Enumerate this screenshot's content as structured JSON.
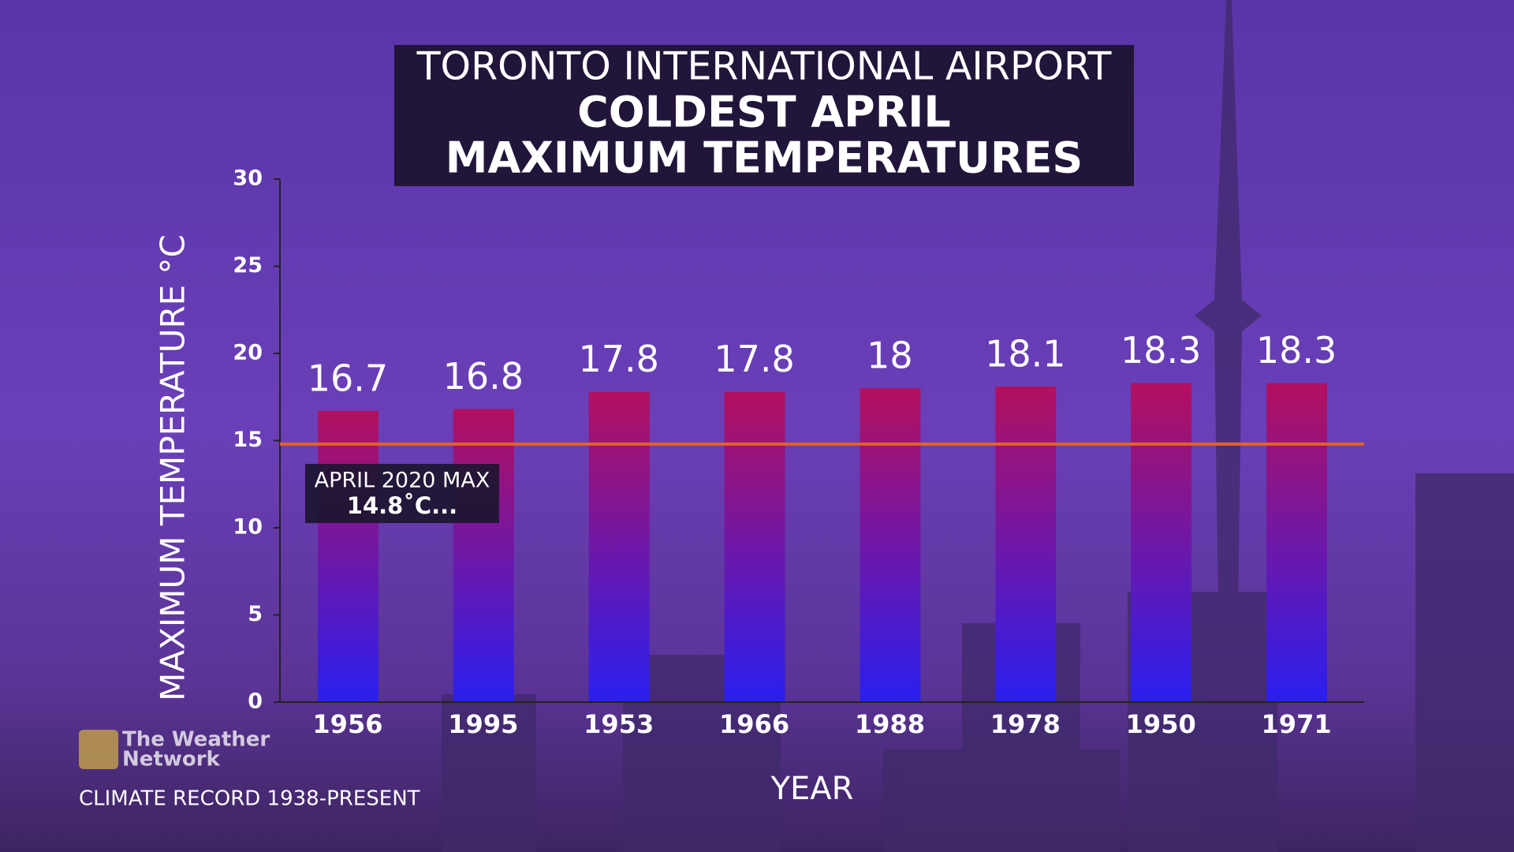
{
  "chart_data": {
    "type": "bar",
    "title": [
      "TORONTO INTERNATIONAL AIRPORT",
      "COLDEST APRIL",
      "MAXIMUM TEMPERATURES"
    ],
    "y_label": "MAXIMUM TEMPERATURE °C",
    "x_label": "YEAR",
    "categories": [
      "1956",
      "1995",
      "1953",
      "1966",
      "1988",
      "1978",
      "1950",
      "1971"
    ],
    "values": [
      16.7,
      16.8,
      17.8,
      17.8,
      18,
      18.1,
      18.3,
      18.3
    ],
    "color": [
      "#b3105e",
      "#2a1ff0"
    ],
    "ylim": [
      0,
      30
    ],
    "yticks": [
      0,
      5,
      10,
      15,
      20,
      25,
      30
    ],
    "grid": false,
    "reference": {
      "value": 14.8,
      "label": "APRIL 2020 MAX",
      "value_label": "14.8˚C...",
      "color": "#e2622a"
    },
    "logo": [
      "The Weather",
      "Network"
    ],
    "note": "CLIMATE RECORD 1938-PRESENT"
  }
}
